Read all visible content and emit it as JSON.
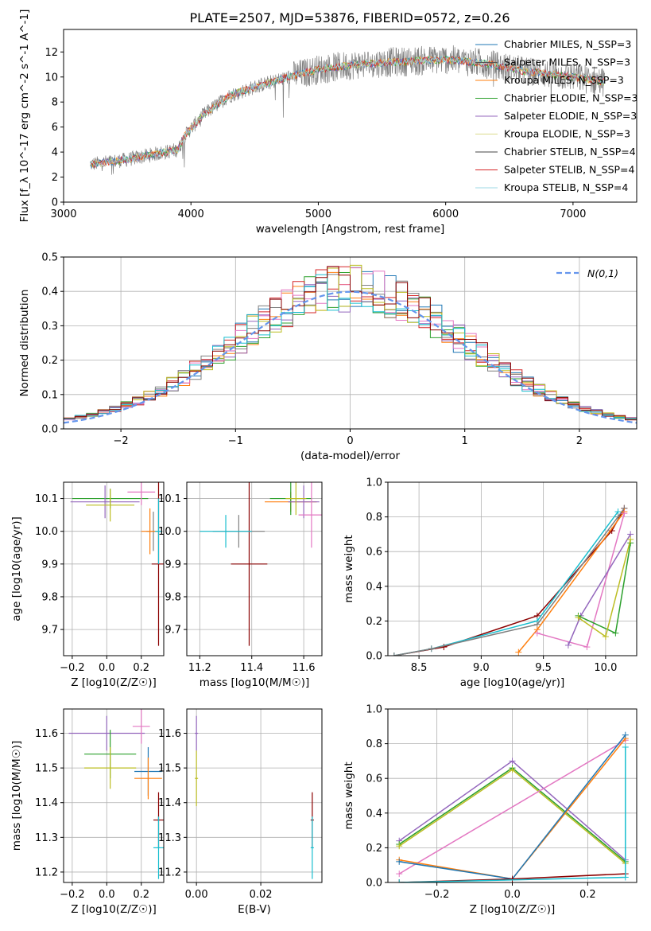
{
  "chart_data": [
    {
      "type": "line",
      "id": "spectrum",
      "title": "PLATE=2507, MJD=53876, FIBERID=0572, z=0.26",
      "xlabel": "wavelength [Angstrom, rest frame]",
      "ylabel": "Flux [f_λ 10^-17 erg cm^-2 s^-1 A^-1]",
      "xlim": [
        3000,
        7500
      ],
      "ylim": [
        0,
        13.8
      ],
      "xticks": [
        3000,
        4000,
        5000,
        6000,
        7000
      ],
      "yticks": [
        0,
        2,
        4,
        6,
        8,
        10,
        12
      ],
      "grid": false,
      "legend_position": "top-right",
      "legend": [
        "Chabrier MILES, N_SSP=3",
        "Salpeter MILES, N_SSP=3",
        "Kroupa MILES, N_SSP=3",
        "Chabrier ELODIE, N_SSP=3",
        "Salpeter ELODIE, N_SSP=3",
        "Kroupa ELODIE, N_SSP=3",
        "Chabrier STELIB, N_SSP=4",
        "Salpeter STELIB, N_SSP=4",
        "Kroupa STELIB, N_SSP=4"
      ],
      "series_colors": [
        "#1f77b4",
        "#555555",
        "#ff7f0e",
        "#2ca02c",
        "#9467bd",
        "#dbdb8d",
        "#444444",
        "#d62728",
        "#9edae5"
      ],
      "continuum": {
        "x": [
          3200,
          3500,
          3900,
          3950,
          4100,
          4300,
          4500,
          4800,
          5000,
          5300,
          5600,
          6000,
          6300,
          6600,
          7000,
          7250
        ],
        "y": [
          3.0,
          3.4,
          4.2,
          5.3,
          7.0,
          8.5,
          9.2,
          10.1,
          10.6,
          11.0,
          11.2,
          11.4,
          11.1,
          10.5,
          10.0,
          9.6
        ]
      },
      "data_range": [
        3210,
        7250
      ]
    },
    {
      "type": "histogram",
      "id": "residuals",
      "xlabel": "(data-model)/error",
      "ylabel": "Normed distribution",
      "xlim": [
        -2.5,
        2.5
      ],
      "ylim": [
        0,
        0.5
      ],
      "xticks": [
        -2,
        -1,
        0,
        1,
        2
      ],
      "yticks": [
        0.0,
        0.1,
        0.2,
        0.3,
        0.4,
        0.5
      ],
      "grid": true,
      "legend_position": "top-right",
      "reference": {
        "label": "N(0,1)",
        "color": "#6495ed"
      },
      "bin_edges": [
        -2.5,
        -2.4,
        -2.3,
        -2.2,
        -2.1,
        -2.0,
        -1.9,
        -1.8,
        -1.7,
        -1.6,
        -1.5,
        -1.4,
        -1.3,
        -1.2,
        -1.1,
        -1.0,
        -0.9,
        -0.8,
        -0.7,
        -0.6,
        -0.5,
        -0.4,
        -0.3,
        -0.2,
        -0.1,
        0.0,
        0.1,
        0.2,
        0.3,
        0.4,
        0.5,
        0.6,
        0.7,
        0.8,
        0.9,
        1.0,
        1.1,
        1.2,
        1.3,
        1.4,
        1.5,
        1.6,
        1.7,
        1.8,
        1.9,
        2.0,
        2.1,
        2.2,
        2.3,
        2.4,
        2.5
      ],
      "series_colors": [
        "#1f77b4",
        "#ff7f0e",
        "#2ca02c",
        "#d62728",
        "#9467bd",
        "#e377c2",
        "#7f7f7f",
        "#bcbd22",
        "#17becf",
        "#8b0000"
      ]
    },
    {
      "type": "scatter",
      "id": "age-vs-Z",
      "xlabel": "Z [log10(Z/Z☉)]",
      "ylabel": "age [log10(age/yr)]",
      "xlim": [
        -0.25,
        0.33
      ],
      "ylim": [
        9.62,
        10.15
      ],
      "xticks": [
        -0.2,
        0.0,
        0.2
      ],
      "yticks": [
        9.7,
        9.8,
        9.9,
        10.0,
        10.1
      ],
      "grid": true
    },
    {
      "type": "scatter",
      "id": "age-vs-mass",
      "xlabel": "mass [log10(M/M☉)]",
      "ylabel": "",
      "xlim": [
        11.15,
        11.67
      ],
      "ylim": [
        9.62,
        10.15
      ],
      "xticks": [
        11.2,
        11.4,
        11.6
      ],
      "yticks": [
        9.7,
        9.8,
        9.9,
        10.0,
        10.1
      ],
      "grid": true
    },
    {
      "type": "line",
      "id": "weight-vs-age",
      "xlabel": "age [log10(age/yr)]",
      "ylabel": "mass weight",
      "xlim": [
        8.25,
        10.25
      ],
      "ylim": [
        0,
        1.0
      ],
      "xticks": [
        8.5,
        9.0,
        9.5,
        10.0
      ],
      "yticks": [
        0.0,
        0.2,
        0.4,
        0.6,
        0.8,
        1.0
      ],
      "grid": true
    },
    {
      "type": "scatter",
      "id": "mass-vs-Z",
      "xlabel": "Z [log10(Z/Z☉)]",
      "ylabel": "mass [log10(M/M☉)]",
      "xlim": [
        -0.25,
        0.33
      ],
      "ylim": [
        11.17,
        11.67
      ],
      "xticks": [
        -0.2,
        0.0,
        0.2
      ],
      "yticks": [
        11.2,
        11.3,
        11.4,
        11.5,
        11.6
      ],
      "grid": true
    },
    {
      "type": "scatter",
      "id": "mass-vs-ebv",
      "xlabel": "E(B-V)",
      "ylabel": "",
      "xlim": [
        -0.003,
        0.039
      ],
      "ylim": [
        11.17,
        11.67
      ],
      "xticks": [
        0.0,
        0.02
      ],
      "yticks": [
        11.2,
        11.3,
        11.4,
        11.5,
        11.6
      ],
      "grid": true
    },
    {
      "type": "line",
      "id": "weight-vs-Z",
      "xlabel": "Z [log10(Z/Z☉)]",
      "ylabel": "mass weight",
      "xlim": [
        -0.33,
        0.33
      ],
      "ylim": [
        0,
        1.0
      ],
      "xticks": [
        -0.2,
        0.0,
        0.2
      ],
      "yticks": [
        0.0,
        0.2,
        0.4,
        0.6,
        0.8,
        1.0
      ],
      "grid": true
    }
  ]
}
